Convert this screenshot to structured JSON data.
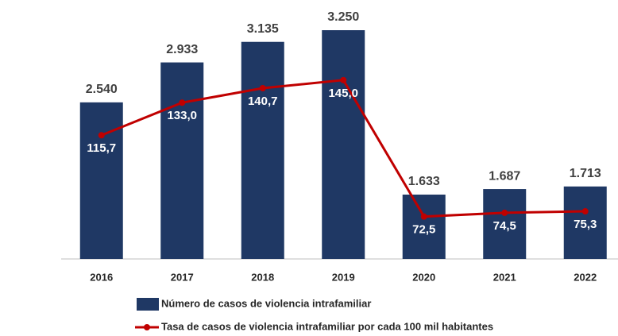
{
  "chart_data": {
    "type": "bar_line",
    "categories": [
      "2016",
      "2017",
      "2018",
      "2019",
      "2020",
      "2021",
      "2022"
    ],
    "series": [
      {
        "name": "Número de casos de violencia intrafamiliar",
        "type": "bar",
        "color": "#1f3864",
        "values": [
          2540,
          2933,
          3135,
          3250,
          1633,
          1687,
          1713
        ],
        "value_labels": [
          "2.540",
          "2.933",
          "3.135",
          "3.250",
          "1.633",
          "1.687",
          "1.713"
        ]
      },
      {
        "name": "Tasa de casos de violencia intrafamiliar por cada 100 mil habitantes",
        "type": "line",
        "axis": "y2",
        "color": "#c00000",
        "values": [
          115.7,
          133.0,
          140.7,
          145.0,
          72.5,
          74.5,
          75.3
        ],
        "value_labels": [
          "115,7",
          "133,0",
          "140,7",
          "145,0",
          "72,5",
          "74,5",
          "75,3"
        ]
      }
    ],
    "ylim": [
      1000,
      3500
    ],
    "y2lim": [
      50,
      185
    ],
    "legend": "bottom"
  }
}
